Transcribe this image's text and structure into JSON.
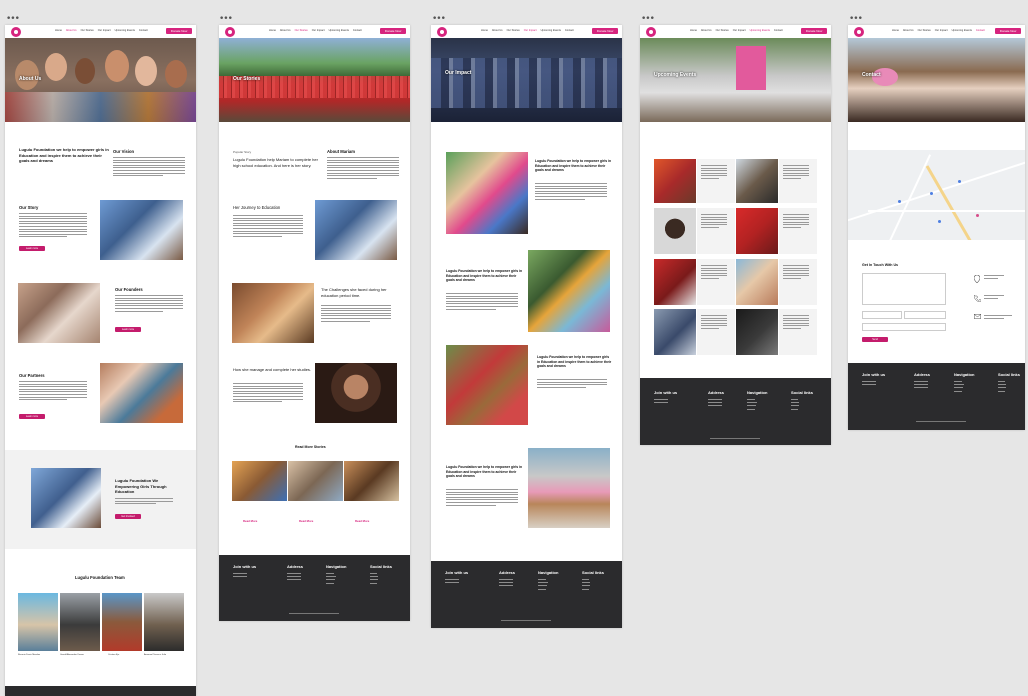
{
  "nav": {
    "links": [
      "Home",
      "About Us",
      "Our Stories",
      "Our Impact",
      "Events",
      "Upcoming Events",
      "Contact"
    ],
    "donate": "Donate Now"
  },
  "about": {
    "hero_title": "About Us",
    "intro": "Lugulu Foundation we help to empower girls in Education and inspire them to achieve their goals and dreams",
    "vision_heading": "Our Vision",
    "story_heading": "Our Story",
    "founders_heading": "Our Founders",
    "partners_heading": "Our Partners",
    "btn": "Learn more",
    "banner_title": "Lugulu Foundation We Empowering Girls Through Education",
    "banner_btn": "Get Involved",
    "team_heading": "Lugulu Foundation Team",
    "team": [
      "Rosario Denis Mendez",
      "Gerald Alexander Kemer",
      "Cristian Ejo",
      "Amanoel Terence Julio"
    ]
  },
  "stories": {
    "hero_title": "Our Stories",
    "eyebrow": "Popular Story",
    "intro": "Lugulu Foundation help Mariam to complete her high school education. And here is her story.",
    "about_heading": "About Mariam",
    "journey_heading": "Her Journey to Education",
    "challenges_heading": "The Challenges she faced during her education period time.",
    "manage_heading": "How she manage and complete her studies.",
    "read_more": "Read More Stories",
    "card_link": "Read More"
  },
  "impact": {
    "hero_title": "Our Impact",
    "blocks": [
      "Lugulu Foundation we help to empower girls in Education and inspire them to achieve their goals and dreams",
      "Lugulu Foundation we help to empower girls in Education and inspire them to achieve their goals and dreams",
      "Lugulu Foundation we help to empower girls in Education and inspire them to achieve their goals and dreams",
      "Lugulu Foundation we help to empower girls in Education and inspire them to achieve their goals and dreams"
    ]
  },
  "events": {
    "hero_title": "Upcoming Events"
  },
  "contact": {
    "hero_title": "Contact",
    "form_heading": "Get In Touch With Us",
    "submit": "Send"
  },
  "footer": {
    "cols": [
      "Join with us",
      "Address",
      "Navigation",
      "Social links"
    ]
  },
  "colors": {
    "accent": "#d6247e",
    "footer": "#2b2b2d"
  }
}
